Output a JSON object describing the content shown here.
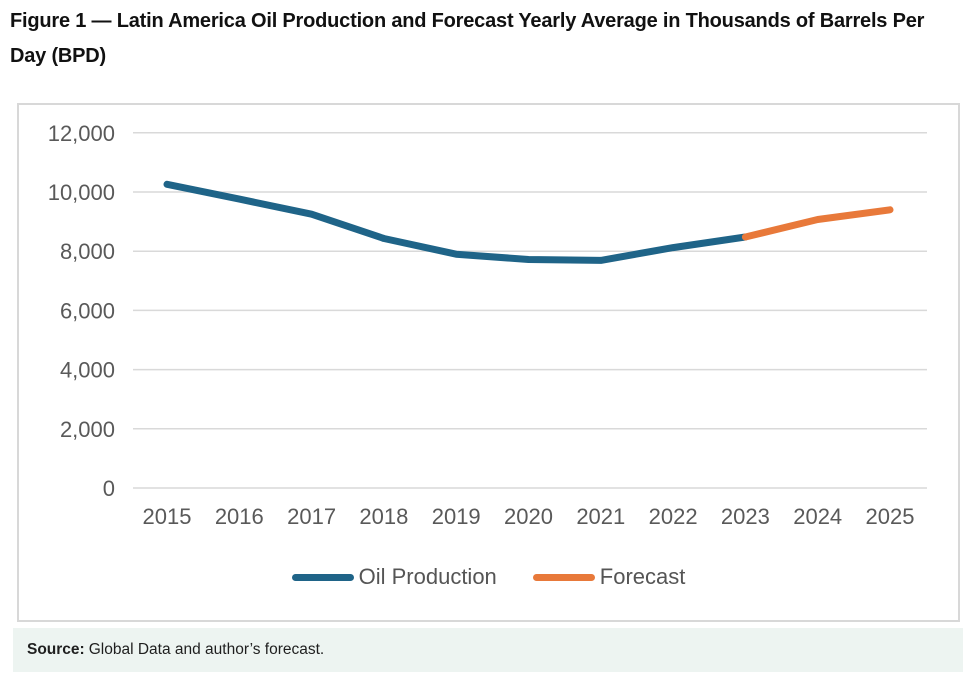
{
  "title": "Figure 1 — Latin America Oil Production and Forecast Yearly Average in Thousands of Barrels Per Day (BPD)",
  "chart_data": {
    "type": "line",
    "x": [
      "2015",
      "2016",
      "2017",
      "2018",
      "2019",
      "2020",
      "2021",
      "2022",
      "2023",
      "2024",
      "2025"
    ],
    "series": [
      {
        "name": "Oil Production",
        "color": "#1f6488",
        "values": [
          10260,
          9760,
          9250,
          8430,
          7900,
          7720,
          7690,
          8120,
          8480,
          null,
          null
        ]
      },
      {
        "name": "Forecast",
        "color": "#e8793a",
        "values": [
          null,
          null,
          null,
          null,
          null,
          null,
          null,
          null,
          8480,
          9070,
          9400
        ]
      }
    ],
    "ylim": [
      0,
      12000
    ],
    "ytick_step": 2000,
    "ytick_labels": [
      "0",
      "2,000",
      "4,000",
      "6,000",
      "8,000",
      "10,000",
      "12,000"
    ],
    "grid": true,
    "legend_position": "bottom"
  },
  "source": {
    "label": "Source:",
    "text": "Global Data and author’s forecast."
  },
  "colors": {
    "production_line": "#1f6488",
    "forecast_line": "#e8793a",
    "gridline": "#d9d9d9",
    "axis_text": "#595959",
    "source_background": "#edf4f1"
  }
}
